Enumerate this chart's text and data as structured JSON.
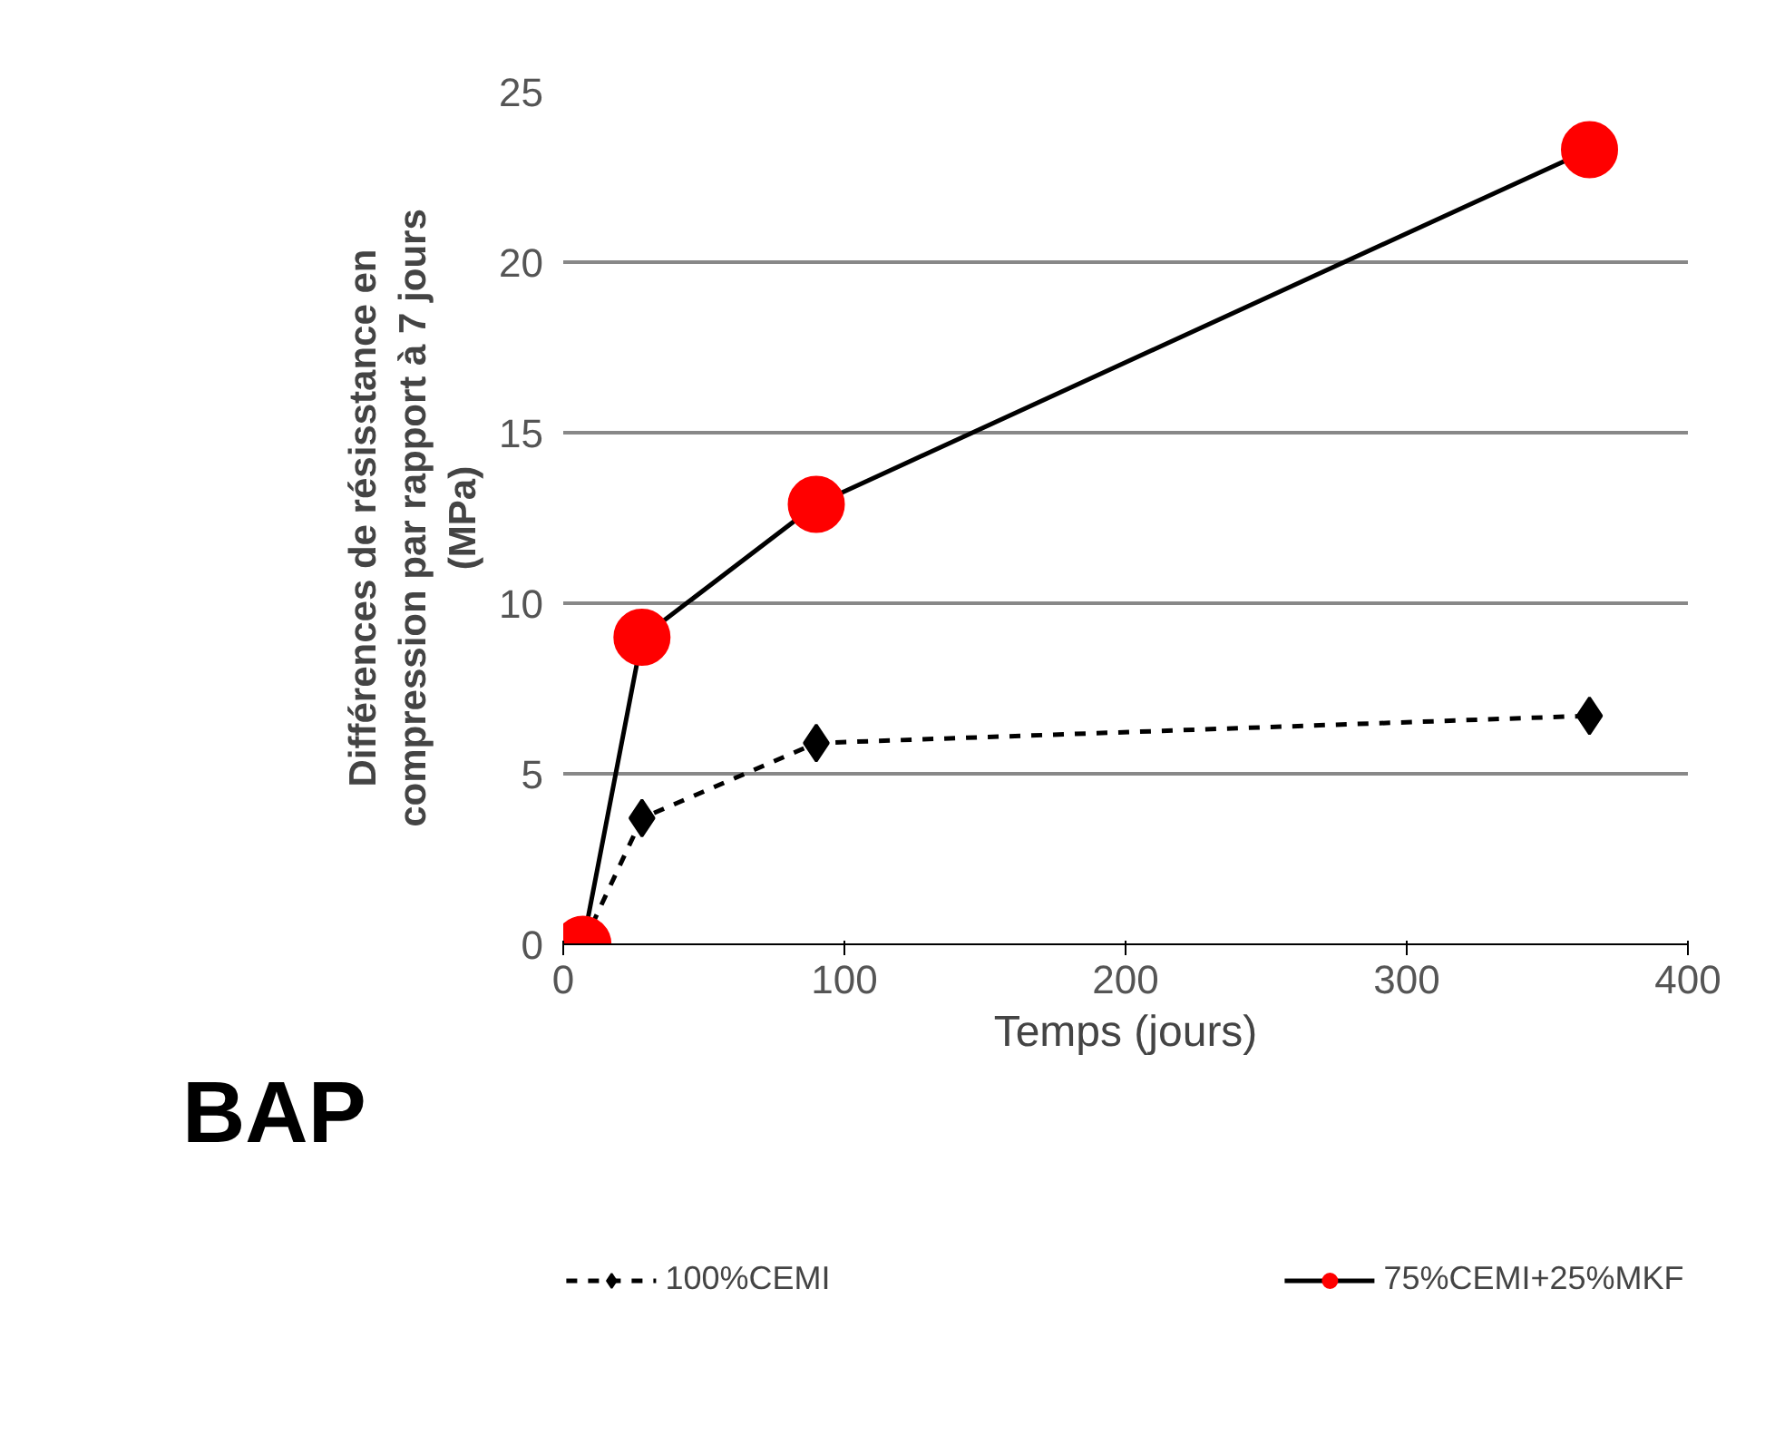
{
  "chart_data": {
    "type": "line",
    "ylabel": "Différences de résisstance en\ncompression par rapport à 7 jours\n(MPa)",
    "xlabel": "Temps (jours)",
    "x": [
      7,
      28,
      90,
      365
    ],
    "series": [
      {
        "name": "100%CEMI",
        "color": "#000000",
        "values": [
          0,
          3.7,
          5.9,
          6.7
        ],
        "marker": "diamond",
        "line_style": "dashed"
      },
      {
        "name": "75%CEMI+25%MKF",
        "color": "#ff0000",
        "values": [
          0,
          9,
          12.9,
          23.3
        ],
        "marker": "circle",
        "line_style": "solid"
      }
    ],
    "xlim": [
      0,
      400
    ],
    "xticks": [
      0,
      100,
      200,
      300,
      400
    ],
    "ylim": [
      0,
      25
    ],
    "yticks": [
      0,
      5,
      10,
      15,
      20,
      25
    ],
    "grid": "y",
    "legend": "bottom",
    "annotations": [
      "BAP"
    ]
  }
}
